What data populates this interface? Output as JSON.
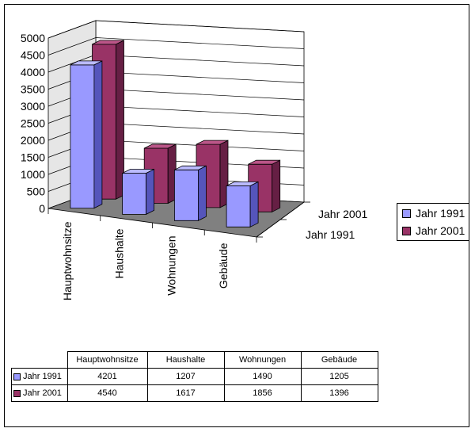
{
  "chart_data": {
    "type": "bar",
    "categories": [
      "Hauptwohnsitze",
      "Haushalte",
      "Wohnungen",
      "Gebäude"
    ],
    "series": [
      {
        "name": "Jahr 1991",
        "values": [
          4201,
          1207,
          1490,
          1205
        ],
        "color": "#9999ff",
        "side": "#5555bb",
        "top": "#bbbbff"
      },
      {
        "name": "Jahr 2001",
        "values": [
          4540,
          1617,
          1856,
          1396
        ],
        "color": "#993366",
        "side": "#661f44",
        "top": "#bb5588"
      }
    ],
    "depth_labels": [
      "Jahr 2001",
      "Jahr 1991"
    ],
    "yticks": [
      "0",
      "500",
      "1000",
      "1500",
      "2000",
      "2500",
      "3000",
      "3500",
      "4000",
      "4500",
      "5000"
    ],
    "ylim": [
      0,
      5000
    ],
    "legend_position": "right",
    "grid": true,
    "table_headers": [
      "Hauptwohnsitze",
      "Haushalte",
      "Wohnungen",
      "Gebäude"
    ]
  }
}
